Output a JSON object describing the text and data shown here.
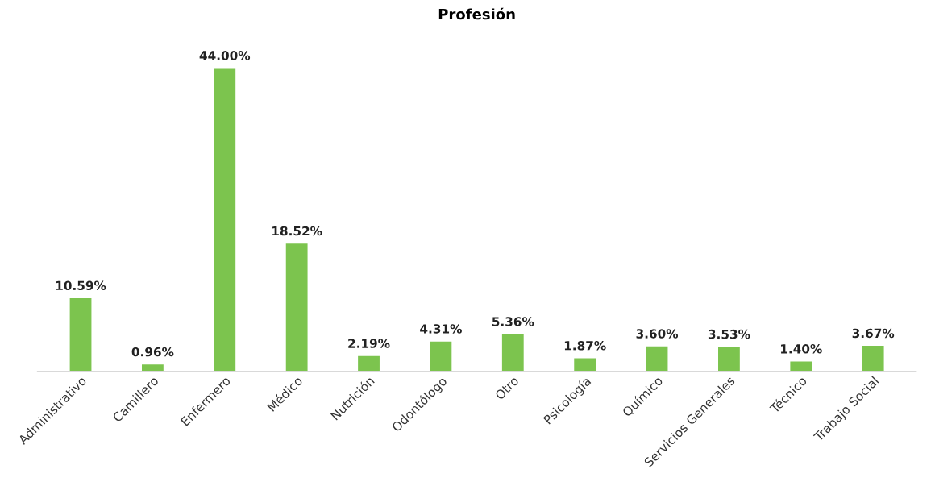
{
  "chart_data": {
    "type": "bar",
    "title": "Profesión",
    "categories": [
      "Administrativo",
      "Camillero",
      "Enfermero",
      "Médico",
      "Nutrición",
      "Odontólogo",
      "Otro",
      "Psicología",
      "Químico",
      "Servicios Generales",
      "Técnico",
      "Trabajo Social"
    ],
    "values": [
      10.59,
      0.96,
      44.0,
      18.52,
      2.19,
      4.31,
      5.36,
      1.87,
      3.6,
      3.53,
      1.4,
      3.67
    ],
    "value_labels": [
      "10.59%",
      "0.96%",
      "44.00%",
      "18.52%",
      "2.19%",
      "4.31%",
      "5.36%",
      "1.87%",
      "3.60%",
      "3.53%",
      "1.40%",
      "3.67%"
    ],
    "color": "#7cc44e"
  }
}
